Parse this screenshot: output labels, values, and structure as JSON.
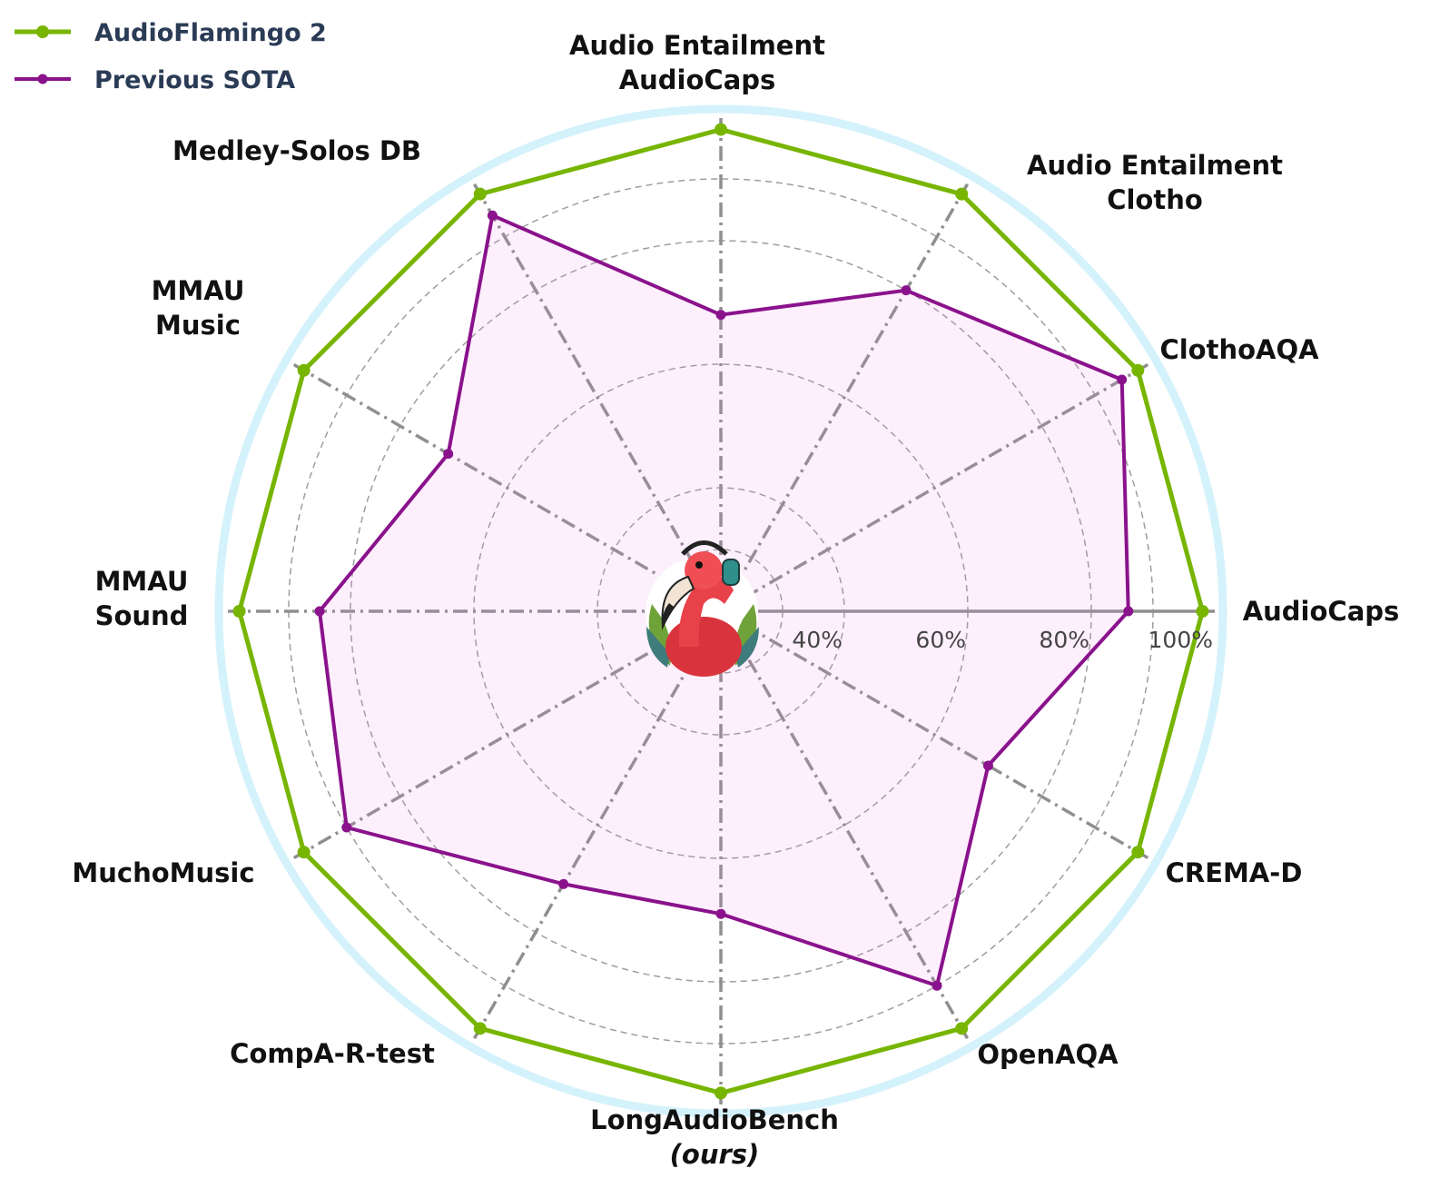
{
  "chart_data": {
    "type": "radar",
    "axes": [
      {
        "lines": [
          "AudioCaps"
        ],
        "italic_line": -1
      },
      {
        "lines": [
          "ClothoAQA"
        ],
        "italic_line": -1
      },
      {
        "lines": [
          "Audio Entailment",
          "Clotho"
        ],
        "italic_line": -1
      },
      {
        "lines": [
          "Audio Entailment",
          "AudioCaps"
        ],
        "italic_line": -1
      },
      {
        "lines": [
          "Medley-Solos DB"
        ],
        "italic_line": -1
      },
      {
        "lines": [
          "MMAU",
          "Music"
        ],
        "italic_line": -1
      },
      {
        "lines": [
          "MMAU",
          "Sound"
        ],
        "italic_line": -1
      },
      {
        "lines": [
          "MuchoMusic"
        ],
        "italic_line": -1
      },
      {
        "lines": [
          "CompA-R-test"
        ],
        "italic_line": -1
      },
      {
        "lines": [
          "LongAudioBench",
          "(ours)"
        ],
        "italic_line": 1
      },
      {
        "lines": [
          "OpenAQA"
        ],
        "italic_line": -1
      },
      {
        "lines": [
          "CREMA-D"
        ],
        "italic_line": -1
      }
    ],
    "radial_ticks": [
      "40%",
      "60%",
      "80%",
      "100%"
    ],
    "radial_tick_values": [
      40,
      60,
      80,
      100
    ],
    "range": [
      20,
      100
    ],
    "series": [
      {
        "name": "AudioFlamingo 2",
        "color": "#77b500",
        "values": [
          98,
          98,
          98,
          98,
          98,
          98,
          98,
          98,
          98,
          98,
          98,
          98
        ]
      },
      {
        "name": "Previous SOTA",
        "color": "#8a128c",
        "values": [
          86,
          95,
          80,
          68,
          94,
          71,
          85,
          90,
          71,
          69,
          90,
          70
        ]
      }
    ],
    "legend_position": "top-left",
    "grid": true
  }
}
